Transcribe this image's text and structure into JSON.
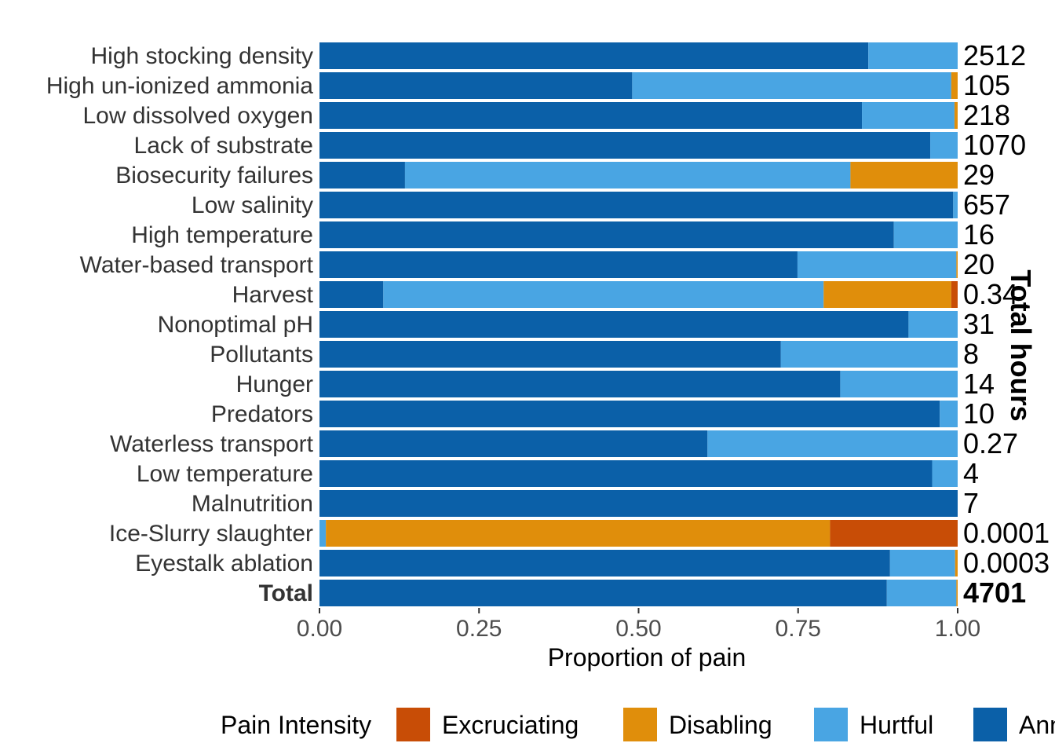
{
  "chart_data": {
    "type": "bar",
    "orientation": "horizontal",
    "stacked": true,
    "xlabel": "Proportion of pain",
    "secondary_axis_title": "Total hours",
    "xlim": [
      0,
      1
    ],
    "xticks": [
      "0.00",
      "0.25",
      "0.50",
      "0.75",
      "1.00"
    ],
    "xtick_values": [
      0,
      0.25,
      0.5,
      0.75,
      1.0
    ],
    "legend": {
      "title": "Pain Intensity",
      "position": "bottom",
      "entries": [
        "Excruciating",
        "Disabling",
        "Hurtful",
        "Annoying"
      ],
      "visible_text": [
        "Excruciating",
        "Disabling",
        "Hurtful",
        "Ann"
      ]
    },
    "series_order": [
      "Annoying",
      "Hurtful",
      "Disabling",
      "Excruciating"
    ],
    "colors": {
      "Excruciating": "#C84D06",
      "Disabling": "#E08E0B",
      "Hurtful": "#49A5E3",
      "Annoying": "#0B60A8"
    },
    "categories": [
      {
        "label": "High stocking density",
        "total": "2512",
        "bold": false,
        "values": {
          "Annoying": 0.86,
          "Hurtful": 0.14,
          "Disabling": 0.0,
          "Excruciating": 0.0
        }
      },
      {
        "label": "High un-ionized ammonia",
        "total": "105",
        "bold": false,
        "values": {
          "Annoying": 0.49,
          "Hurtful": 0.5,
          "Disabling": 0.01,
          "Excruciating": 0.0
        }
      },
      {
        "label": "Low dissolved oxygen",
        "total": "218",
        "bold": false,
        "values": {
          "Annoying": 0.85,
          "Hurtful": 0.145,
          "Disabling": 0.005,
          "Excruciating": 0.0
        }
      },
      {
        "label": "Lack of substrate",
        "total": "1070",
        "bold": false,
        "values": {
          "Annoying": 0.957,
          "Hurtful": 0.043,
          "Disabling": 0.0,
          "Excruciating": 0.0
        }
      },
      {
        "label": "Biosecurity failures",
        "total": "29",
        "bold": false,
        "values": {
          "Annoying": 0.134,
          "Hurtful": 0.698,
          "Disabling": 0.168,
          "Excruciating": 0.0
        }
      },
      {
        "label": "Low salinity",
        "total": "657",
        "bold": false,
        "values": {
          "Annoying": 0.993,
          "Hurtful": 0.007,
          "Disabling": 0.0,
          "Excruciating": 0.0
        }
      },
      {
        "label": "High temperature",
        "total": "16",
        "bold": false,
        "values": {
          "Annoying": 0.9,
          "Hurtful": 0.1,
          "Disabling": 0.0,
          "Excruciating": 0.0
        }
      },
      {
        "label": "Water-based transport",
        "total": "20",
        "bold": false,
        "values": {
          "Annoying": 0.749,
          "Hurtful": 0.249,
          "Disabling": 0.002,
          "Excruciating": 0.0
        }
      },
      {
        "label": "Harvest",
        "total": "0.34",
        "bold": false,
        "values": {
          "Annoying": 0.1,
          "Hurtful": 0.69,
          "Disabling": 0.2,
          "Excruciating": 0.01
        }
      },
      {
        "label": "Nonoptimal pH",
        "total": "31",
        "bold": false,
        "values": {
          "Annoying": 0.923,
          "Hurtful": 0.077,
          "Disabling": 0.0,
          "Excruciating": 0.0
        }
      },
      {
        "label": "Pollutants",
        "total": "8",
        "bold": false,
        "values": {
          "Annoying": 0.723,
          "Hurtful": 0.277,
          "Disabling": 0.0,
          "Excruciating": 0.0
        }
      },
      {
        "label": "Hunger",
        "total": "14",
        "bold": false,
        "values": {
          "Annoying": 0.816,
          "Hurtful": 0.184,
          "Disabling": 0.0,
          "Excruciating": 0.0
        }
      },
      {
        "label": "Predators",
        "total": "10",
        "bold": false,
        "values": {
          "Annoying": 0.972,
          "Hurtful": 0.028,
          "Disabling": 0.0,
          "Excruciating": 0.0
        }
      },
      {
        "label": "Waterless transport",
        "total": "0.27",
        "bold": false,
        "values": {
          "Annoying": 0.608,
          "Hurtful": 0.392,
          "Disabling": 0.0,
          "Excruciating": 0.0
        }
      },
      {
        "label": "Low temperature",
        "total": "4",
        "bold": false,
        "values": {
          "Annoying": 0.96,
          "Hurtful": 0.04,
          "Disabling": 0.0,
          "Excruciating": 0.0
        }
      },
      {
        "label": "Malnutrition",
        "total": "7",
        "bold": false,
        "values": {
          "Annoying": 1.0,
          "Hurtful": 0.0,
          "Disabling": 0.0,
          "Excruciating": 0.0
        }
      },
      {
        "label": "Ice-Slurry slaughter",
        "total": "0.0001",
        "bold": false,
        "values": {
          "Annoying": 0.0,
          "Hurtful": 0.01,
          "Disabling": 0.79,
          "Excruciating": 0.2
        }
      },
      {
        "label": "Eyestalk ablation",
        "total": "0.0003",
        "bold": false,
        "values": {
          "Annoying": 0.894,
          "Hurtful": 0.102,
          "Disabling": 0.004,
          "Excruciating": 0.0
        }
      },
      {
        "label": "Total",
        "total": "4701",
        "bold": true,
        "values": {
          "Annoying": 0.889,
          "Hurtful": 0.109,
          "Disabling": 0.002,
          "Excruciating": 0.0
        }
      }
    ]
  }
}
